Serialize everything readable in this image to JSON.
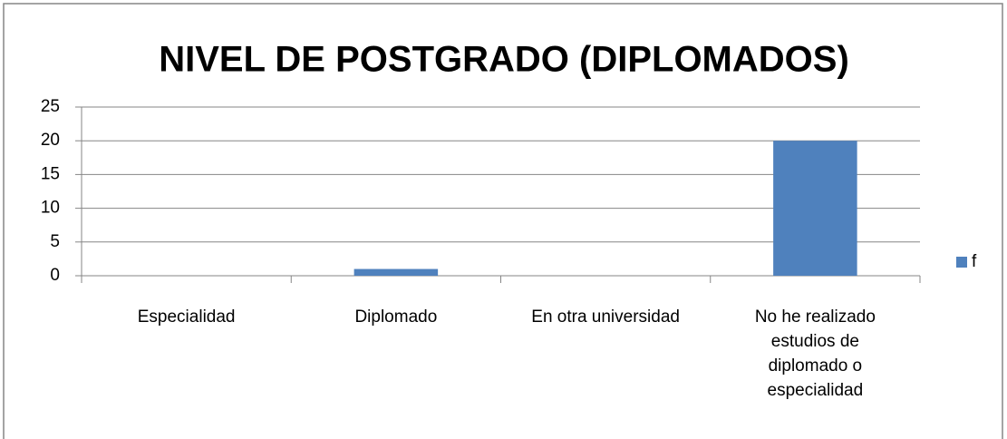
{
  "chart_data": {
    "type": "bar",
    "title": "NIVEL DE POSTGRADO (DIPLOMADOS)",
    "categories": [
      "Especialidad",
      "Diplomado",
      "En otra universidad",
      "No he realizado estudios de diplomado o especialidad"
    ],
    "series": [
      {
        "name": "f",
        "color": "#4f81bd",
        "values": [
          0,
          1,
          0,
          20
        ]
      }
    ],
    "ylim": [
      0,
      25
    ],
    "yticks": [
      0,
      5,
      10,
      15,
      20,
      25
    ],
    "grid": true,
    "legend": "right"
  }
}
